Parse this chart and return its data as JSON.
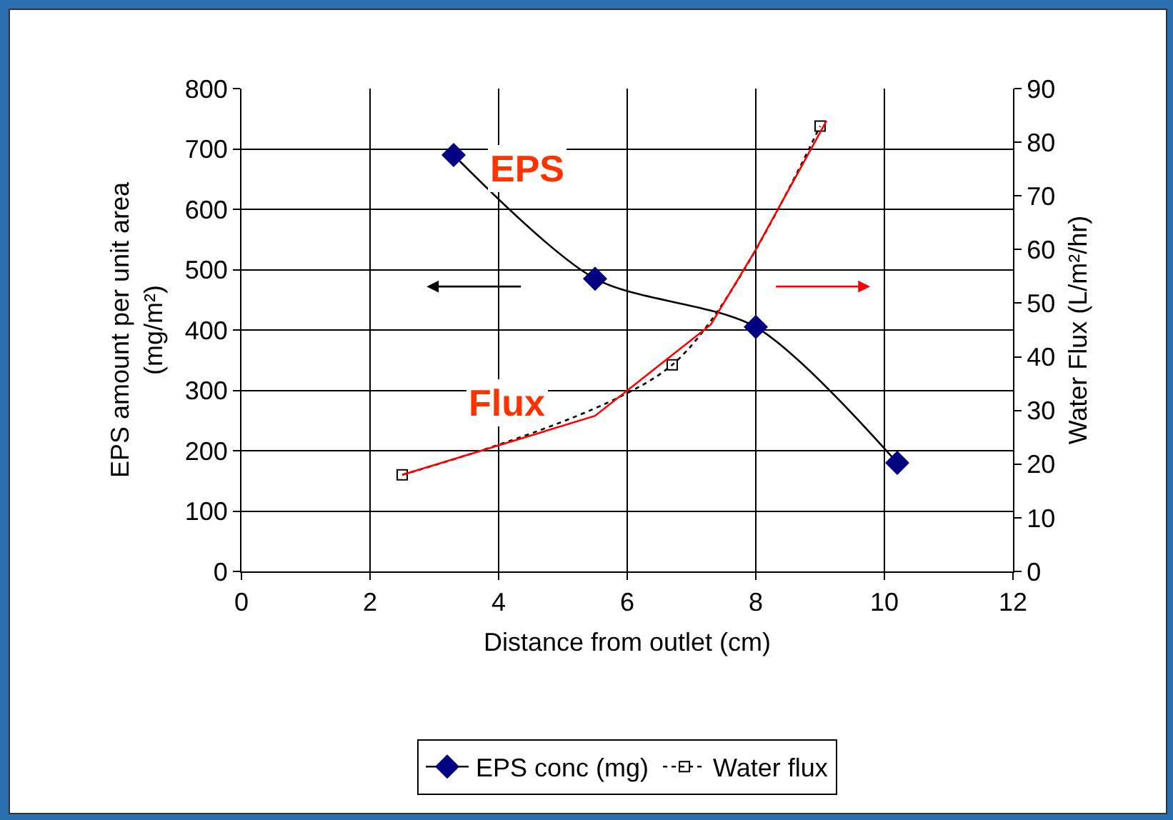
{
  "chart_data": {
    "type": "line",
    "xlabel": "Distance from outlet (cm)",
    "ylabel": "EPS amount per unit area (mg/m²)",
    "y2label": "Water Flux (L/m²/hr)",
    "xlim": [
      0,
      12
    ],
    "xticks": [
      0,
      2,
      4,
      6,
      8,
      10,
      12
    ],
    "ylim": [
      0,
      800
    ],
    "yticks": [
      0,
      100,
      200,
      300,
      400,
      500,
      600,
      700,
      800
    ],
    "y2lim": [
      0,
      90
    ],
    "y2ticks": [
      0,
      10,
      20,
      30,
      40,
      50,
      60,
      70,
      80,
      90
    ],
    "grid": true,
    "legend": "bottom",
    "series": [
      {
        "name": "EPS conc (mg)",
        "color": "#000080",
        "x": [
          3.3,
          5.5,
          8.0,
          10.2
        ],
        "values": [
          690,
          485,
          405,
          180
        ],
        "marker": "diamond",
        "line_style": "solid"
      },
      {
        "name": "Water flux",
        "color": "#000000",
        "x": [
          2.5,
          6.7,
          9.0
        ],
        "values": [
          18,
          38.5,
          83
        ],
        "axis": "y2",
        "marker": "square",
        "line_style": "dotted"
      },
      {
        "color": "#ff0000",
        "x": [
          2.5,
          5.5,
          7.3,
          8.0,
          9.1
        ],
        "values": [
          18,
          29,
          46,
          60,
          84
        ],
        "axis": "y2",
        "marker": "none",
        "line_style": "solid"
      }
    ],
    "annotations": [
      "EPS",
      "Flux"
    ]
  }
}
